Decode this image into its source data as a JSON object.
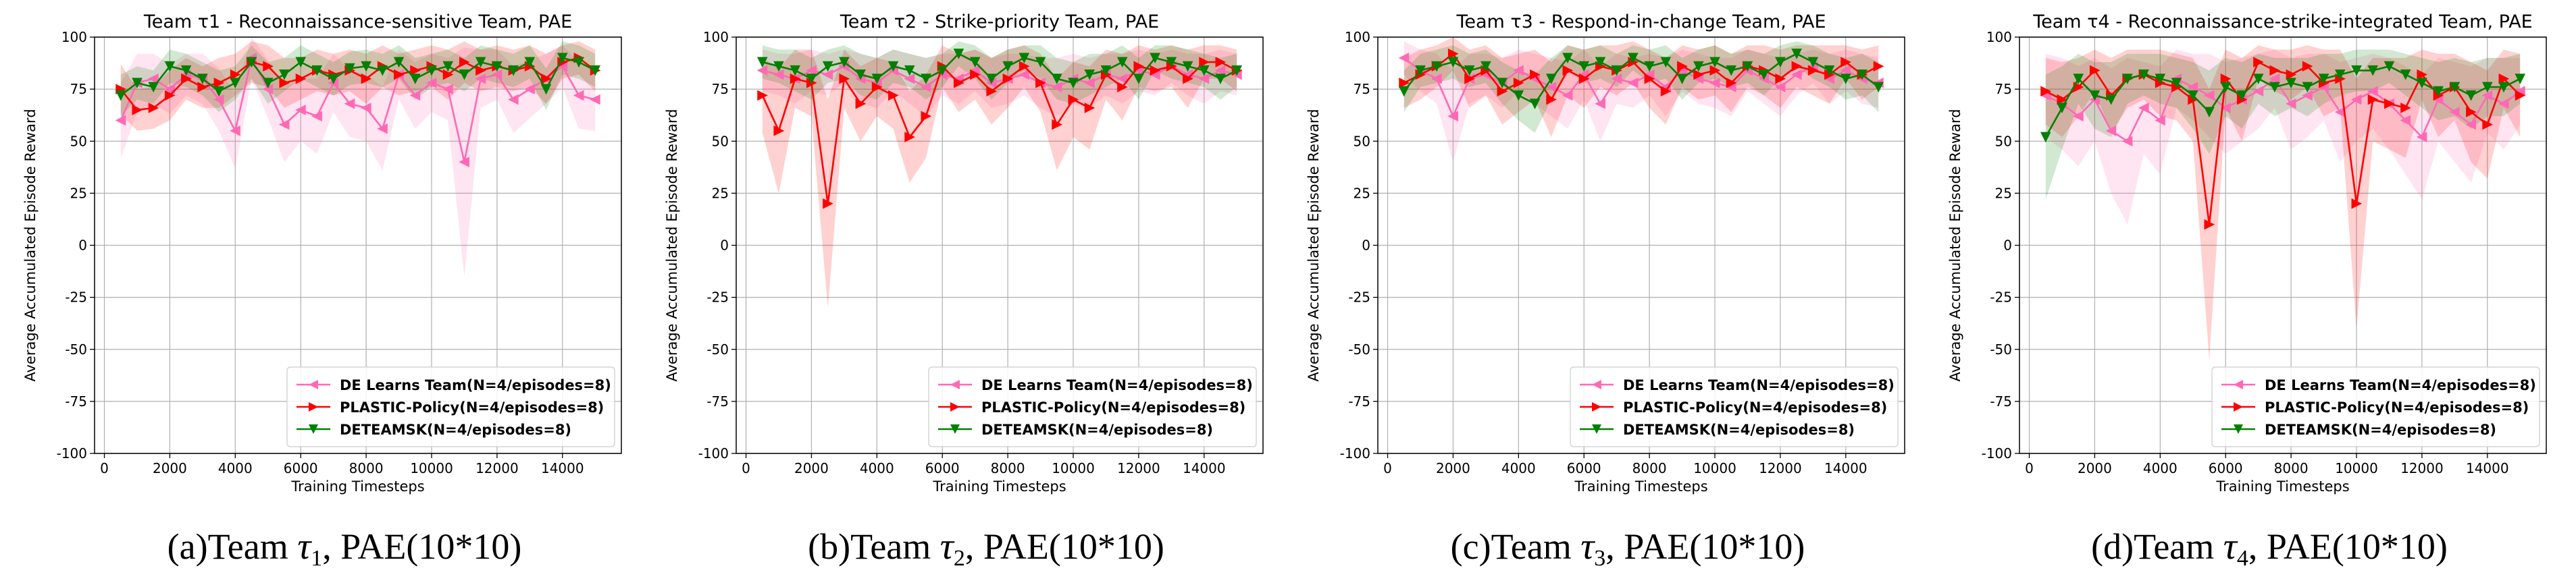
{
  "figure": {
    "captions": [
      {
        "pre": "(a)Team ",
        "tau": "τ",
        "sub": "1",
        "post": ", PAE(10*10)"
      },
      {
        "pre": "(b)Team ",
        "tau": "τ",
        "sub": "2",
        "post": ", PAE(10*10)"
      },
      {
        "pre": "(c)Team ",
        "tau": "τ",
        "sub": "3",
        "post": ", PAE(10*10)"
      },
      {
        "pre": "(d)Team ",
        "tau": "τ",
        "sub": "4",
        "post": ", PAE(10*10)"
      }
    ]
  },
  "chart_data": [
    {
      "type": "line",
      "title": "Team τ1 - Reconnaissance-sensitive Team, PAE",
      "xlabel": "Training Timesteps",
      "ylabel": "Average Accumulated Episode Reward",
      "xlim": [
        -300,
        15800
      ],
      "ylim": [
        -100,
        100
      ],
      "xticks": [
        0,
        2000,
        4000,
        6000,
        8000,
        10000,
        12000,
        14000
      ],
      "yticks": [
        -100,
        -75,
        -50,
        -25,
        0,
        25,
        50,
        75,
        100
      ],
      "grid": true,
      "legend_position": "lower-right",
      "x": [
        500,
        1000,
        1500,
        2000,
        2500,
        3000,
        3500,
        4000,
        4500,
        5000,
        5500,
        6000,
        6500,
        7000,
        7500,
        8000,
        8500,
        9000,
        9500,
        10000,
        10500,
        11000,
        11500,
        12000,
        12500,
        13000,
        13500,
        14000,
        14500,
        15000
      ],
      "series": [
        {
          "name": "DE Learns Team(N=4/episodes=8)",
          "color": "#ff69b4",
          "marker": "triangle-left",
          "values": [
            60,
            78,
            80,
            75,
            82,
            80,
            70,
            55,
            90,
            75,
            58,
            65,
            62,
            78,
            68,
            66,
            56,
            82,
            72,
            78,
            75,
            40,
            80,
            82,
            70,
            75,
            80,
            86,
            72,
            70
          ],
          "band": [
            18,
            14,
            12,
            12,
            10,
            12,
            15,
            18,
            10,
            14,
            18,
            15,
            18,
            14,
            16,
            16,
            20,
            12,
            16,
            14,
            15,
            55,
            14,
            12,
            16,
            14,
            12,
            10,
            16,
            15
          ]
        },
        {
          "name": "PLASTIC-Policy(N=4/episodes=8)",
          "color": "#ff0000",
          "marker": "triangle-right",
          "values": [
            75,
            65,
            66,
            72,
            80,
            76,
            78,
            82,
            88,
            86,
            78,
            80,
            84,
            82,
            84,
            80,
            86,
            82,
            84,
            86,
            82,
            88,
            84,
            86,
            84,
            86,
            80,
            88,
            90,
            84
          ],
          "band": [
            12,
            10,
            10,
            12,
            10,
            10,
            12,
            10,
            10,
            10,
            12,
            10,
            10,
            10,
            10,
            12,
            10,
            10,
            10,
            10,
            12,
            10,
            10,
            10,
            10,
            10,
            12,
            8,
            8,
            10
          ]
        },
        {
          "name": "DETEAMSK(N=4/episodes=8)",
          "color": "#008000",
          "marker": "triangle-down",
          "values": [
            72,
            78,
            76,
            86,
            84,
            80,
            74,
            78,
            88,
            78,
            82,
            88,
            84,
            80,
            85,
            86,
            84,
            88,
            80,
            84,
            86,
            82,
            88,
            86,
            84,
            88,
            75,
            90,
            88,
            84
          ],
          "band": [
            10,
            8,
            8,
            8,
            8,
            8,
            10,
            8,
            8,
            10,
            8,
            8,
            8,
            8,
            8,
            8,
            8,
            8,
            10,
            8,
            8,
            8,
            8,
            8,
            8,
            8,
            10,
            8,
            8,
            8
          ]
        }
      ]
    },
    {
      "type": "line",
      "title": "Team τ2 - Strike-priority Team, PAE",
      "xlabel": "Training Timesteps",
      "ylabel": "Average Accumulated Episode Reward",
      "xlim": [
        -300,
        15800
      ],
      "ylim": [
        -100,
        100
      ],
      "xticks": [
        0,
        2000,
        4000,
        6000,
        8000,
        10000,
        12000,
        14000
      ],
      "yticks": [
        -100,
        -75,
        -50,
        -25,
        0,
        25,
        50,
        75,
        100
      ],
      "grid": true,
      "legend_position": "lower-right",
      "x": [
        500,
        1000,
        1500,
        2000,
        2500,
        3000,
        3500,
        4000,
        4500,
        5000,
        5500,
        6000,
        6500,
        7000,
        7500,
        8000,
        8500,
        9000,
        9500,
        10000,
        10500,
        11000,
        11500,
        12000,
        12500,
        13000,
        13500,
        14000,
        14500,
        15000
      ],
      "series": [
        {
          "name": "DE Learns Team(N=4/episodes=8)",
          "color": "#ff69b4",
          "marker": "triangle-left",
          "values": [
            84,
            82,
            80,
            84,
            82,
            86,
            80,
            78,
            84,
            80,
            76,
            82,
            80,
            84,
            78,
            80,
            82,
            78,
            76,
            80,
            78,
            82,
            80,
            84,
            82,
            86,
            82,
            80,
            84,
            82
          ],
          "band": [
            10,
            10,
            12,
            10,
            10,
            8,
            12,
            12,
            10,
            12,
            14,
            10,
            12,
            10,
            12,
            12,
            10,
            12,
            14,
            12,
            12,
            10,
            12,
            10,
            10,
            8,
            10,
            12,
            10,
            10
          ]
        },
        {
          "name": "PLASTIC-Policy(N=4/episodes=8)",
          "color": "#ff0000",
          "marker": "triangle-right",
          "values": [
            72,
            55,
            80,
            78,
            20,
            80,
            68,
            76,
            72,
            52,
            62,
            86,
            78,
            82,
            74,
            80,
            86,
            78,
            58,
            70,
            66,
            82,
            76,
            86,
            84,
            86,
            80,
            88,
            88,
            84
          ],
          "band": [
            18,
            30,
            14,
            16,
            50,
            14,
            18,
            14,
            16,
            22,
            20,
            10,
            14,
            12,
            16,
            14,
            10,
            14,
            22,
            18,
            20,
            12,
            16,
            10,
            10,
            10,
            14,
            8,
            8,
            10
          ]
        },
        {
          "name": "DETEAMSK(N=4/episodes=8)",
          "color": "#008000",
          "marker": "triangle-down",
          "values": [
            88,
            86,
            84,
            80,
            86,
            88,
            82,
            80,
            86,
            84,
            80,
            84,
            92,
            88,
            80,
            86,
            90,
            88,
            80,
            78,
            82,
            84,
            88,
            80,
            90,
            88,
            86,
            84,
            80,
            84
          ],
          "band": [
            8,
            8,
            10,
            10,
            8,
            8,
            10,
            10,
            8,
            8,
            10,
            8,
            6,
            8,
            10,
            8,
            6,
            8,
            10,
            10,
            10,
            8,
            8,
            10,
            6,
            8,
            8,
            8,
            10,
            8
          ]
        }
      ]
    },
    {
      "type": "line",
      "title": "Team τ3 - Respond-in-change Team, PAE",
      "xlabel": "Training Timesteps",
      "ylabel": "Average Accumulated Episode Reward",
      "xlim": [
        -300,
        15800
      ],
      "ylim": [
        -100,
        100
      ],
      "xticks": [
        0,
        2000,
        4000,
        6000,
        8000,
        10000,
        12000,
        14000
      ],
      "yticks": [
        -100,
        -75,
        -50,
        -25,
        0,
        25,
        50,
        75,
        100
      ],
      "grid": true,
      "legend_position": "lower-right",
      "x": [
        500,
        1000,
        1500,
        2000,
        2500,
        3000,
        3500,
        4000,
        4500,
        5000,
        5500,
        6000,
        6500,
        7000,
        7500,
        8000,
        8500,
        9000,
        9500,
        10000,
        10500,
        11000,
        11500,
        12000,
        12500,
        13000,
        13500,
        14000,
        14500,
        15000
      ],
      "series": [
        {
          "name": "DE Learns Team(N=4/episodes=8)",
          "color": "#ff69b4",
          "marker": "triangle-left",
          "values": [
            90,
            84,
            80,
            62,
            80,
            82,
            78,
            84,
            80,
            76,
            72,
            82,
            68,
            80,
            78,
            82,
            76,
            84,
            80,
            78,
            76,
            84,
            80,
            76,
            82,
            86,
            80,
            84,
            80,
            78
          ],
          "band": [
            8,
            10,
            12,
            22,
            12,
            10,
            12,
            10,
            12,
            14,
            16,
            12,
            18,
            12,
            12,
            10,
            14,
            10,
            12,
            12,
            14,
            10,
            12,
            14,
            10,
            8,
            12,
            10,
            12,
            12
          ]
        },
        {
          "name": "PLASTIC-Policy(N=4/episodes=8)",
          "color": "#ff0000",
          "marker": "triangle-right",
          "values": [
            78,
            82,
            86,
            92,
            80,
            84,
            74,
            78,
            82,
            70,
            84,
            80,
            86,
            84,
            88,
            80,
            74,
            86,
            82,
            84,
            78,
            86,
            84,
            80,
            86,
            84,
            82,
            88,
            82,
            86
          ],
          "band": [
            12,
            12,
            10,
            8,
            14,
            12,
            16,
            14,
            12,
            18,
            12,
            14,
            10,
            12,
            10,
            14,
            16,
            10,
            12,
            12,
            14,
            10,
            12,
            14,
            10,
            12,
            14,
            8,
            12,
            10
          ]
        },
        {
          "name": "DETEAMSK(N=4/episodes=8)",
          "color": "#008000",
          "marker": "triangle-down",
          "values": [
            74,
            84,
            86,
            88,
            84,
            86,
            78,
            72,
            68,
            80,
            90,
            86,
            88,
            84,
            90,
            86,
            88,
            80,
            86,
            88,
            84,
            86,
            82,
            88,
            92,
            88,
            84,
            80,
            82,
            76
          ],
          "band": [
            10,
            8,
            8,
            8,
            8,
            8,
            10,
            12,
            14,
            10,
            6,
            8,
            8,
            8,
            6,
            8,
            8,
            10,
            8,
            8,
            8,
            8,
            10,
            8,
            6,
            8,
            8,
            10,
            10,
            12
          ]
        }
      ]
    },
    {
      "type": "line",
      "title": "Team τ4 - Reconnaissance-strike-integrated Team, PAE",
      "xlabel": "Training Timesteps",
      "ylabel": "Average Accumulated Episode Reward",
      "xlim": [
        -300,
        15800
      ],
      "ylim": [
        -100,
        100
      ],
      "xticks": [
        0,
        2000,
        4000,
        6000,
        8000,
        10000,
        12000,
        14000
      ],
      "yticks": [
        -100,
        -75,
        -50,
        -25,
        0,
        25,
        50,
        75,
        100
      ],
      "grid": true,
      "legend_position": "lower-right",
      "x": [
        500,
        1000,
        1500,
        2000,
        2500,
        3000,
        3500,
        4000,
        4500,
        5000,
        5500,
        6000,
        6500,
        7000,
        7500,
        8000,
        8500,
        9000,
        9500,
        10000,
        10500,
        11000,
        11500,
        12000,
        12500,
        13000,
        13500,
        14000,
        14500,
        15000
      ],
      "series": [
        {
          "name": "DE Learns Team(N=4/episodes=8)",
          "color": "#ff69b4",
          "marker": "triangle-left",
          "values": [
            72,
            68,
            62,
            70,
            55,
            50,
            66,
            60,
            80,
            76,
            72,
            66,
            70,
            74,
            80,
            68,
            72,
            76,
            64,
            70,
            74,
            68,
            60,
            52,
            70,
            64,
            58,
            72,
            68,
            74
          ],
          "band": [
            20,
            22,
            24,
            20,
            30,
            40,
            22,
            26,
            14,
            16,
            20,
            22,
            20,
            18,
            14,
            22,
            20,
            16,
            24,
            20,
            18,
            22,
            26,
            30,
            20,
            24,
            28,
            18,
            22,
            16
          ]
        },
        {
          "name": "PLASTIC-Policy(N=4/episodes=8)",
          "color": "#ff0000",
          "marker": "triangle-right",
          "values": [
            74,
            70,
            76,
            84,
            72,
            80,
            82,
            78,
            76,
            70,
            10,
            80,
            70,
            88,
            84,
            82,
            86,
            78,
            80,
            20,
            70,
            68,
            66,
            82,
            72,
            76,
            64,
            58,
            80,
            72
          ],
          "band": [
            16,
            18,
            14,
            10,
            18,
            14,
            12,
            16,
            16,
            20,
            65,
            14,
            20,
            8,
            10,
            12,
            10,
            16,
            14,
            60,
            20,
            22,
            24,
            12,
            20,
            16,
            24,
            26,
            14,
            20
          ]
        },
        {
          "name": "DETEAMSK(N=4/episodes=8)",
          "color": "#008000",
          "marker": "triangle-down",
          "values": [
            52,
            66,
            80,
            72,
            70,
            80,
            82,
            80,
            78,
            72,
            64,
            76,
            72,
            80,
            76,
            78,
            76,
            80,
            82,
            84,
            84,
            86,
            82,
            78,
            74,
            76,
            72,
            76,
            76,
            80
          ],
          "band": [
            30,
            20,
            12,
            16,
            18,
            12,
            10,
            12,
            12,
            16,
            20,
            14,
            16,
            12,
            14,
            12,
            14,
            12,
            10,
            10,
            10,
            8,
            10,
            12,
            14,
            14,
            16,
            14,
            14,
            12
          ]
        }
      ]
    }
  ]
}
